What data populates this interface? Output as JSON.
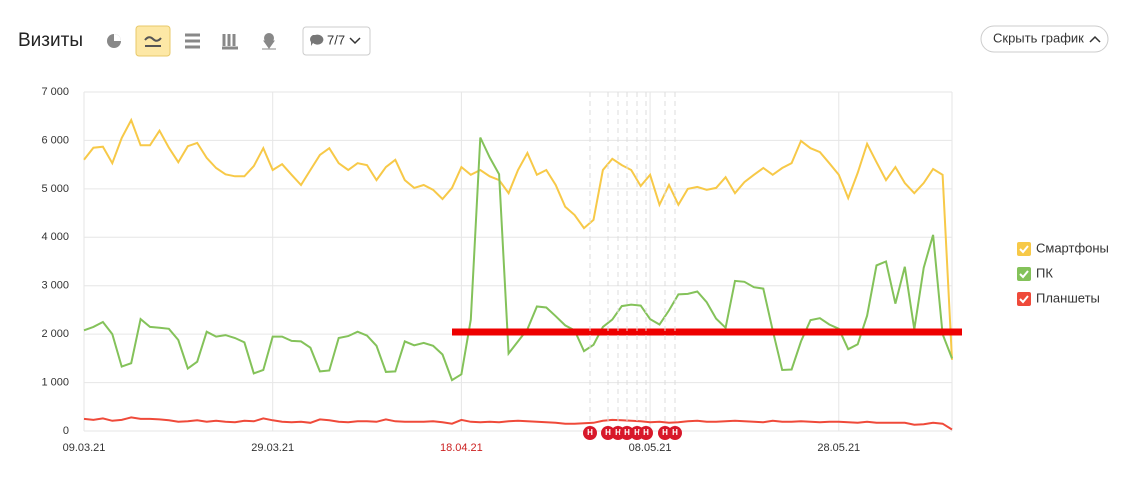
{
  "header": {
    "title": "Визиты",
    "comments_filter": "7/7",
    "hide_button": "Скрыть график"
  },
  "chart_data": {
    "type": "line",
    "categories": [
      "09.03.21",
      null,
      null,
      null,
      null,
      null,
      null,
      null,
      null,
      null,
      null,
      null,
      null,
      null,
      null,
      null,
      null,
      null,
      null,
      null,
      "29.03.21",
      null,
      null,
      null,
      null,
      null,
      null,
      null,
      null,
      null,
      null,
      null,
      null,
      null,
      null,
      null,
      null,
      null,
      null,
      null,
      "18.04.21",
      null,
      null,
      null,
      null,
      null,
      null,
      null,
      null,
      null,
      null,
      null,
      null,
      null,
      null,
      null,
      null,
      null,
      null,
      null,
      "08.05.21",
      null,
      null,
      null,
      null,
      null,
      null,
      null,
      null,
      null,
      null,
      null,
      null,
      null,
      null,
      null,
      null,
      null,
      null,
      null,
      "28.05.21",
      null,
      null,
      null,
      null,
      null,
      null,
      null,
      null,
      null,
      null,
      null,
      null
    ],
    "holiday_label_color": "#cc2222",
    "series": [
      {
        "name": "Смартфоны",
        "color": "#f7c948",
        "values": [
          5600,
          5850,
          5870,
          5530,
          6050,
          6420,
          5900,
          5900,
          6200,
          5850,
          5550,
          5880,
          5950,
          5640,
          5430,
          5300,
          5260,
          5260,
          5470,
          5840,
          5390,
          5510,
          5290,
          5080,
          5390,
          5700,
          5840,
          5530,
          5390,
          5530,
          5490,
          5180,
          5450,
          5600,
          5180,
          5020,
          5080,
          4980,
          4790,
          5020,
          5450,
          5290,
          5390,
          5260,
          5180,
          4910,
          5390,
          5740,
          5290,
          5390,
          5080,
          4630,
          4460,
          4190,
          4360,
          5390,
          5620,
          5490,
          5390,
          5060,
          5290,
          4670,
          5080,
          4670,
          5000,
          5040,
          4980,
          5020,
          5240,
          4910,
          5140,
          5290,
          5430,
          5290,
          5430,
          5530,
          5990,
          5840,
          5760,
          5530,
          5290,
          4810,
          5330,
          5930,
          5550,
          5180,
          5450,
          5120,
          4910,
          5120,
          5410,
          5290,
          1470
        ]
      },
      {
        "name": "ПК",
        "color": "#84c25a",
        "values": [
          2080,
          2150,
          2250,
          2000,
          1330,
          1400,
          2310,
          2150,
          2130,
          2110,
          1880,
          1290,
          1430,
          2050,
          1950,
          1980,
          1920,
          1830,
          1190,
          1260,
          1950,
          1950,
          1860,
          1850,
          1720,
          1230,
          1250,
          1920,
          1960,
          2050,
          1970,
          1760,
          1220,
          1230,
          1850,
          1770,
          1820,
          1760,
          1580,
          1050,
          1170,
          2300,
          6060,
          5650,
          5300,
          1600,
          1850,
          2100,
          2570,
          2550,
          2370,
          2180,
          2080,
          1650,
          1780,
          2150,
          2300,
          2580,
          2610,
          2590,
          2310,
          2200,
          2490,
          2820,
          2830,
          2880,
          2660,
          2320,
          2130,
          3100,
          3080,
          2970,
          2940,
          2080,
          1260,
          1270,
          1850,
          2290,
          2330,
          2200,
          2110,
          1690,
          1790,
          2380,
          3420,
          3500,
          2630,
          3390,
          2100,
          3370,
          4050,
          2000,
          1500
        ]
      },
      {
        "name": "Планшеты",
        "color": "#ef4a3a",
        "values": [
          250,
          230,
          260,
          210,
          230,
          280,
          250,
          250,
          240,
          220,
          190,
          200,
          220,
          190,
          210,
          190,
          180,
          210,
          200,
          260,
          220,
          190,
          180,
          190,
          170,
          240,
          220,
          190,
          180,
          200,
          200,
          190,
          240,
          200,
          190,
          190,
          190,
          200,
          180,
          150,
          230,
          190,
          180,
          190,
          180,
          200,
          210,
          200,
          190,
          180,
          170,
          150,
          150,
          160,
          170,
          210,
          230,
          220,
          210,
          200,
          180,
          190,
          170,
          180,
          200,
          210,
          190,
          190,
          200,
          210,
          200,
          190,
          180,
          210,
          190,
          190,
          200,
          190,
          180,
          190,
          190,
          180,
          170,
          190,
          170,
          170,
          170,
          170,
          130,
          140,
          170,
          150,
          30
        ]
      }
    ],
    "ylim": [
      0,
      7000
    ],
    "yticks": [
      0,
      {
        "value": 1000,
        "label": "1 000"
      },
      {
        "value": 2000,
        "label": "2 000"
      },
      {
        "value": 3000,
        "label": "3 000"
      },
      {
        "value": 4000,
        "label": "4 000"
      },
      {
        "value": 5000,
        "label": "5 000"
      },
      {
        "value": 6000,
        "label": "6 000"
      },
      {
        "value": 7000,
        "label": "7 000"
      }
    ],
    "grid": true,
    "legend": "right",
    "event_label": "Н"
  }
}
